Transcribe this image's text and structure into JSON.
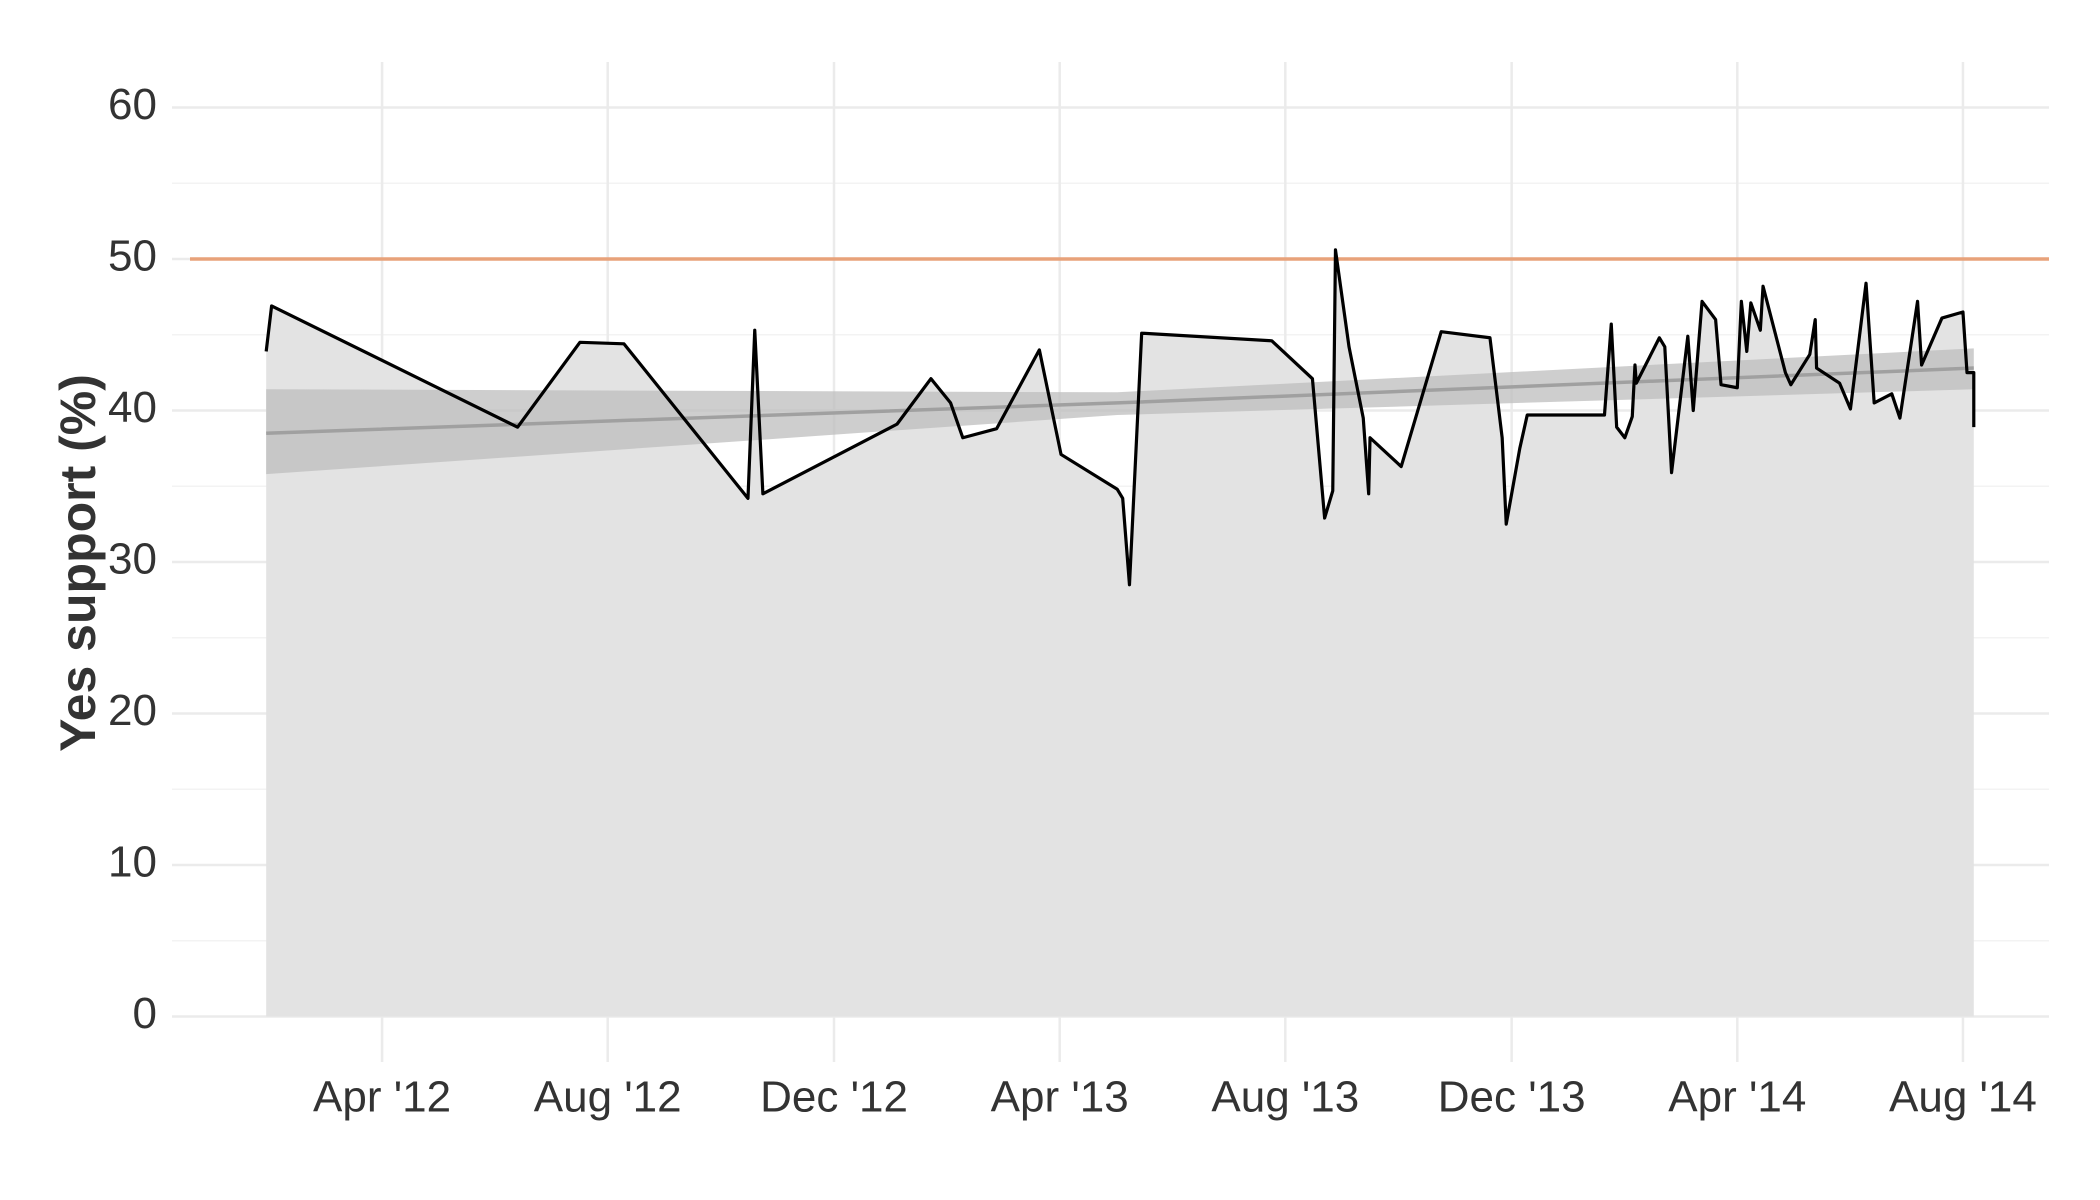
{
  "chart_data": {
    "type": "line",
    "y_label": "Yes support (%)",
    "x": [
      2012.079,
      2012.087,
      2012.45,
      2012.542,
      2012.607,
      2012.79,
      2012.8,
      2012.812,
      2013.01,
      2013.06,
      2013.089,
      2013.107,
      2013.157,
      2013.22,
      2013.252,
      2013.335,
      2013.343,
      2013.353,
      2013.371,
      2013.563,
      2013.623,
      2013.641,
      2013.653,
      2013.657,
      2013.677,
      2013.698,
      2013.706,
      2013.708,
      2013.754,
      2013.813,
      2013.885,
      2013.903,
      2013.909,
      2013.929,
      2013.94,
      2014.054,
      2014.064,
      2014.072,
      2014.084,
      2014.095,
      2014.099,
      2014.101,
      2014.135,
      2014.143,
      2014.153,
      2014.177,
      2014.185,
      2014.198,
      2014.218,
      2014.226,
      2014.25,
      2014.256,
      2014.264,
      2014.27,
      2014.284,
      2014.288,
      2014.321,
      2014.329,
      2014.357,
      2014.365,
      2014.367,
      2014.401,
      2014.417,
      2014.44,
      2014.452,
      2014.478,
      2014.49,
      2014.516,
      2014.522,
      2014.552,
      2014.583,
      2014.589,
      2014.599,
      2014.599
    ],
    "series": [
      {
        "name": "Yes support",
        "color": "#000000",
        "area_color": "#e3e3e3",
        "values": [
          43.9,
          46.9,
          38.9,
          44.5,
          44.4,
          34.2,
          45.3,
          34.5,
          39.1,
          42.1,
          40.5,
          38.2,
          38.8,
          44.0,
          37.1,
          34.8,
          34.2,
          28.5,
          45.1,
          44.6,
          42.1,
          32.9,
          34.7,
          50.6,
          44.2,
          39.5,
          34.5,
          38.2,
          36.3,
          45.2,
          44.8,
          38.2,
          32.5,
          37.5,
          39.7,
          39.7,
          45.7,
          38.9,
          38.2,
          39.6,
          43.0,
          41.8,
          44.8,
          44.2,
          35.9,
          44.9,
          40.0,
          47.2,
          46.0,
          41.7,
          41.5,
          47.2,
          43.9,
          47.1,
          45.3,
          48.2,
          42.5,
          41.7,
          43.7,
          46.0,
          42.8,
          41.8,
          40.1,
          48.4,
          40.5,
          41.1,
          39.5,
          47.2,
          43.0,
          46.1,
          46.5,
          42.5,
          42.5,
          38.9
        ]
      }
    ],
    "trend": {
      "color": "#a0a0a0",
      "band_color": "#bdbdbd",
      "x": [
        2012.079,
        2013.335,
        2014.599
      ],
      "values": [
        38.5,
        40.5,
        42.8
      ],
      "lower": [
        35.8,
        39.7,
        41.4
      ],
      "upper": [
        41.4,
        41.2,
        44.1
      ]
    },
    "reference_line": {
      "value": 50,
      "color": "#e8a27a"
    },
    "xlim": [
      2011.94,
      2014.71
    ],
    "xticks": [
      {
        "value": 2012.25,
        "label": "Apr '12"
      },
      {
        "value": 2012.583,
        "label": "Aug '12"
      },
      {
        "value": 2012.917,
        "label": "Dec '12"
      },
      {
        "value": 2013.25,
        "label": "Apr '13"
      },
      {
        "value": 2013.583,
        "label": "Aug '13"
      },
      {
        "value": 2013.917,
        "label": "Dec '13"
      },
      {
        "value": 2014.25,
        "label": "Apr '14"
      },
      {
        "value": 2014.583,
        "label": "Aug '14"
      }
    ],
    "ylim": [
      -3,
      63
    ],
    "yticks": [
      0,
      10,
      20,
      30,
      40,
      50,
      60
    ],
    "y_minor_ticks": [
      5,
      15,
      25,
      35,
      45,
      55
    ],
    "grid": true
  }
}
